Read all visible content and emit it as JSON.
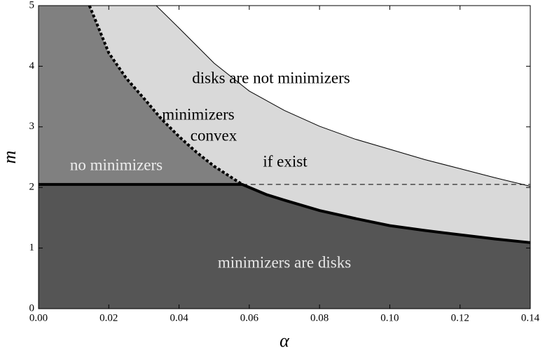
{
  "chart_data": {
    "type": "region",
    "xlabel": "α",
    "ylabel": "m",
    "xlim": [
      0,
      0.14
    ],
    "ylim": [
      0,
      5
    ],
    "xticks": [
      {
        "value": 0,
        "label": "0.00"
      },
      {
        "value": 0.02,
        "label": "0.02"
      },
      {
        "value": 0.04,
        "label": "0.04"
      },
      {
        "value": 0.06,
        "label": "0.06"
      },
      {
        "value": 0.08,
        "label": "0.08"
      },
      {
        "value": 0.1,
        "label": "0.10"
      },
      {
        "value": 0.12,
        "label": "0.12"
      },
      {
        "value": 0.14,
        "label": "0.14"
      }
    ],
    "yticks": [
      0,
      1,
      2,
      3,
      4,
      5
    ],
    "series": [
      {
        "x": [
          0,
          0.058,
          0.065,
          0.07,
          0.08,
          0.09,
          0.1,
          0.11,
          0.12,
          0.13,
          0.14
        ],
        "values": [
          2.05,
          2.05,
          1.88,
          1.79,
          1.62,
          1.49,
          1.37,
          1.29,
          1.22,
          1.15,
          1.09
        ],
        "color": "#000000"
      },
      {
        "x": [
          0.0145,
          0.02,
          0.025,
          0.03,
          0.035,
          0.04,
          0.045,
          0.05,
          0.054,
          0.058
        ],
        "values": [
          5,
          4.22,
          3.8,
          3.47,
          3.13,
          2.84,
          2.58,
          2.35,
          2.2,
          2.05
        ],
        "color": "#000000"
      },
      {
        "x": [
          0.0335,
          0.04,
          0.05,
          0.06,
          0.07,
          0.08,
          0.09,
          0.1,
          0.11,
          0.12,
          0.13,
          0.14
        ],
        "values": [
          5,
          4.63,
          4.05,
          3.59,
          3.27,
          3.01,
          2.8,
          2.63,
          2.46,
          2.31,
          2.16,
          2.02
        ],
        "color": "#000000"
      },
      {
        "x": [
          0.058,
          0.14
        ],
        "values": [
          2.05,
          2.05
        ],
        "color": "#000000"
      }
    ],
    "annotations": [
      "disks are not minimizers",
      "minimizers",
      "convex",
      "if exist",
      "no minimizers",
      "minimizers are disks"
    ]
  }
}
